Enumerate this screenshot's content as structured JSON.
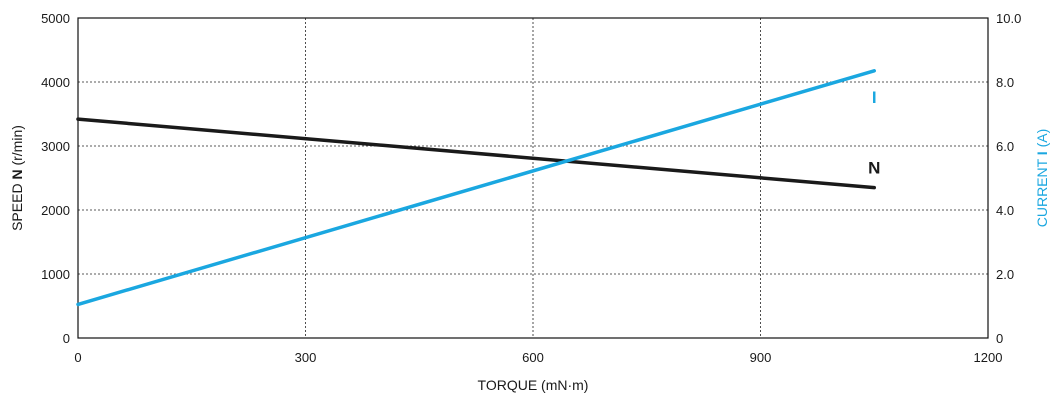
{
  "chart_data": {
    "type": "line",
    "xlabel": "TORQUE (mN·m)",
    "ylabel_left": {
      "prefix": "SPEED ",
      "bold": "N",
      "suffix": " (r/min)"
    },
    "ylabel_right": {
      "prefix": "CURRENT ",
      "bold": "I",
      "suffix": " (A)"
    },
    "xlim": [
      0,
      1200
    ],
    "ylim_left": [
      0,
      5000
    ],
    "ylim_right": [
      0,
      10
    ],
    "x_ticks": [
      "0",
      "300",
      "600",
      "900",
      "1200"
    ],
    "x_tick_values": [
      0,
      300,
      600,
      900,
      1200
    ],
    "y_left_ticks": [
      "0",
      "1000",
      "2000",
      "3000",
      "4000",
      "5000"
    ],
    "y_left_tick_values": [
      0,
      1000,
      2000,
      3000,
      4000,
      5000
    ],
    "y_right_ticks": [
      "0",
      "2.0",
      "4.0",
      "6.0",
      "8.0",
      "10.0"
    ],
    "y_right_tick_values": [
      0,
      2,
      4,
      6,
      8,
      10
    ],
    "grid": true,
    "series": [
      {
        "name": "N",
        "axis": "left",
        "color": "#1a1a1a",
        "x": [
          0,
          1050
        ],
        "y": [
          3420,
          2350
        ]
      },
      {
        "name": "I",
        "axis": "right",
        "color": "#1aa7e0",
        "x": [
          0,
          1050
        ],
        "y": [
          1.05,
          8.35
        ]
      }
    ]
  }
}
